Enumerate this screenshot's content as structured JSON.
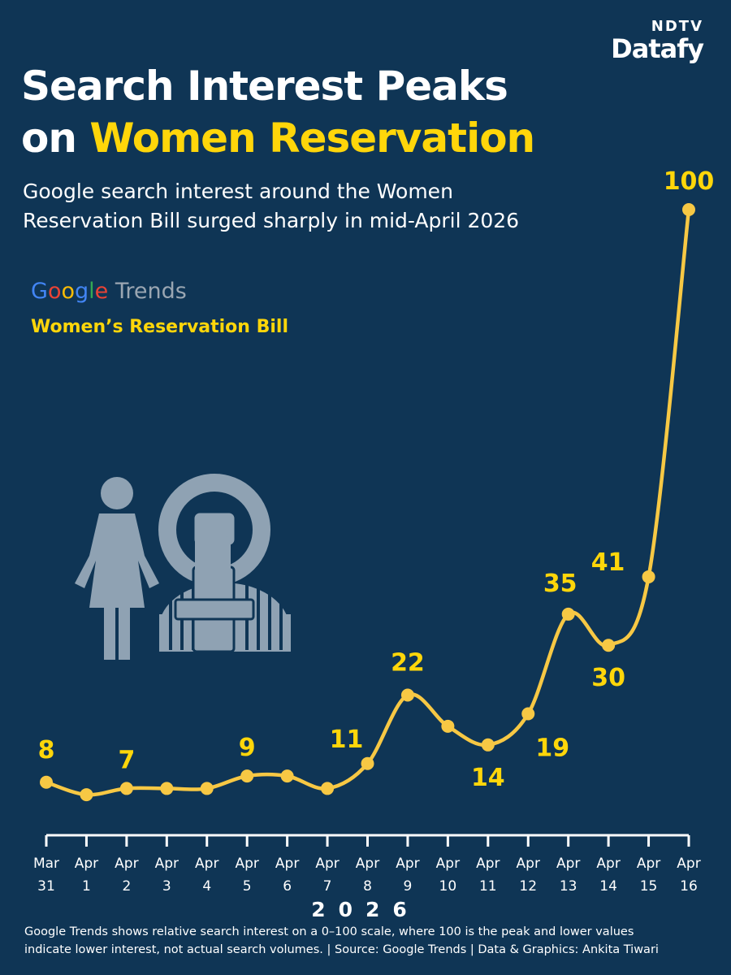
{
  "brand": {
    "top": "NDTV",
    "bottom": "Datafy"
  },
  "title_line1": "Search Interest Peaks",
  "title_line2_prefix": "on ",
  "title_line2_highlight": "Women Reservation",
  "subtitle_line1": "Google search interest around the Women",
  "subtitle_line2": "Reservation Bill surged sharply in mid-April 2026",
  "trends_brand": {
    "letters": [
      "G",
      "o",
      "o",
      "g",
      "l",
      "e"
    ],
    "colors": [
      "#4285F4",
      "#EA4335",
      "#FBBC05",
      "#4285F4",
      "#34A853",
      "#EA4335"
    ],
    "suffix": " Trends"
  },
  "series_label": "Women’s Reservation Bill",
  "colors": {
    "background": "#0f3555",
    "accent": "#ffd60a",
    "line": "#f7c844",
    "icon": "#8fa2b3"
  },
  "chart_data": {
    "type": "line",
    "title": "Search Interest Peaks on Women Reservation",
    "series_name": "Women’s Reservation Bill",
    "x_label": "2026",
    "categories": [
      [
        "Mar",
        "31"
      ],
      [
        "Apr",
        "1"
      ],
      [
        "Apr",
        "2"
      ],
      [
        "Apr",
        "3"
      ],
      [
        "Apr",
        "4"
      ],
      [
        "Apr",
        "5"
      ],
      [
        "Apr",
        "6"
      ],
      [
        "Apr",
        "7"
      ],
      [
        "Apr",
        "8"
      ],
      [
        "Apr",
        "9"
      ],
      [
        "Apr",
        "10"
      ],
      [
        "Apr",
        "11"
      ],
      [
        "Apr",
        "12"
      ],
      [
        "Apr",
        "13"
      ],
      [
        "Apr",
        "14"
      ],
      [
        "Apr",
        "15"
      ],
      [
        "Apr",
        "16"
      ]
    ],
    "values": [
      8,
      6,
      7,
      7,
      7,
      9,
      9,
      7,
      11,
      22,
      17,
      14,
      19,
      35,
      30,
      41,
      100
    ],
    "labeled_indices": [
      0,
      2,
      5,
      8,
      9,
      11,
      12,
      13,
      14,
      15,
      16
    ],
    "ylim": [
      0,
      100
    ]
  },
  "footnote_line1": "Google Trends shows relative search interest on a 0–100 scale, where 100 is the peak and lower values",
  "footnote_line2": "indicate lower interest, not actual search volumes. | Source: Google Trends | Data & Graphics: Ankita Tiwari"
}
